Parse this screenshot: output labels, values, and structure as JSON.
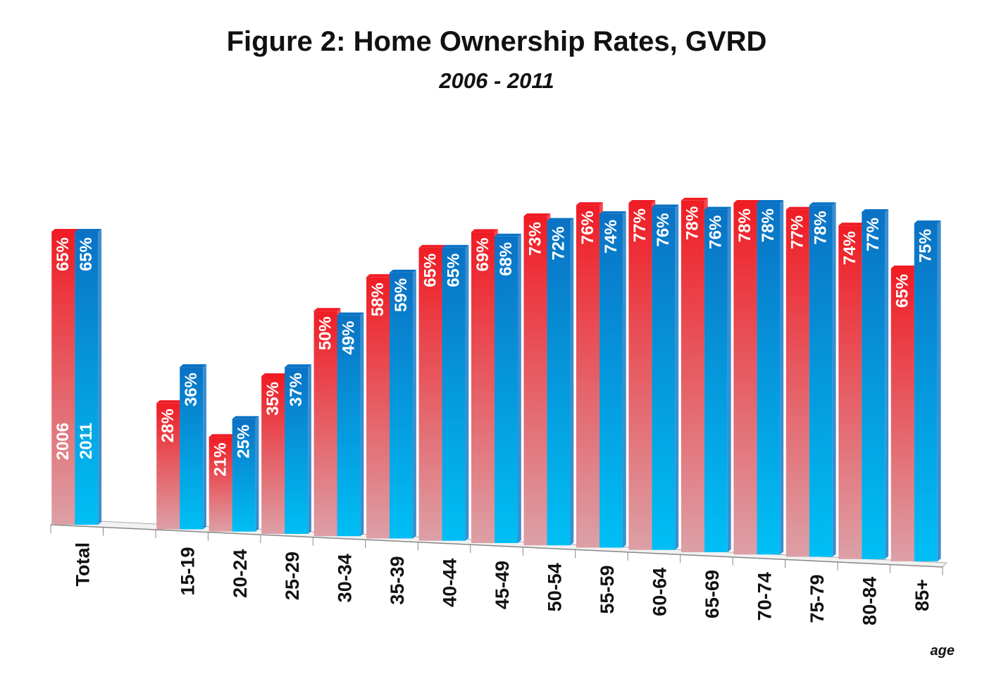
{
  "chart_data": {
    "type": "bar",
    "title": "Figure 2: Home Ownership Rates, GVRD",
    "subtitle": "2006 - 2011",
    "x_label": "age",
    "categories": [
      "Total",
      null,
      "15-19",
      "20-24",
      "25-29",
      "30-34",
      "35-39",
      "40-44",
      "45-49",
      "50-54",
      "55-59",
      "60-64",
      "65-69",
      "70-74",
      "75-79",
      "80-84",
      "85+"
    ],
    "series": [
      {
        "name": "2006",
        "color": "#f01c24",
        "values": [
          65,
          null,
          28,
          21,
          35,
          50,
          58,
          65,
          69,
          73,
          76,
          77,
          78,
          78,
          77,
          74,
          65
        ],
        "value_labels": [
          "65%",
          null,
          "28%",
          "21%",
          "35%",
          "50%",
          "58%",
          "65%",
          "69%",
          "73%",
          "76%",
          "77%",
          "78%",
          "78%",
          "77%",
          "74%",
          "65%"
        ]
      },
      {
        "name": "2011",
        "color": "#0a72c4",
        "values": [
          65,
          null,
          36,
          25,
          37,
          49,
          59,
          65,
          68,
          72,
          74,
          76,
          76,
          78,
          78,
          77,
          75
        ],
        "value_labels": [
          "65%",
          null,
          "36%",
          "25%",
          "37%",
          "49%",
          "59%",
          "65%",
          "68%",
          "72%",
          "74%",
          "76%",
          "76%",
          "78%",
          "78%",
          "77%",
          "75%"
        ]
      }
    ],
    "ylim": [
      0,
      100
    ]
  }
}
